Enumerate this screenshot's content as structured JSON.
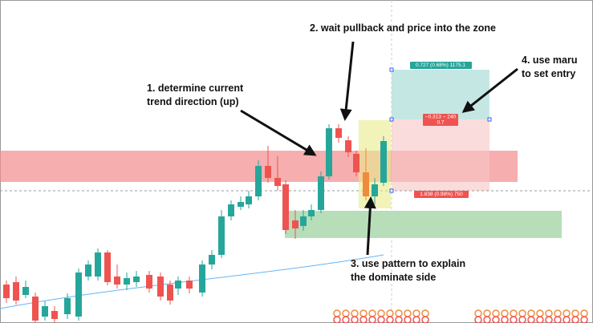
{
  "annotations": {
    "step1": [
      "1. determine current",
      "trend direction (up)"
    ],
    "step2": "2. wait pullback and price into the zone",
    "step3": [
      "3. use pattern to explain",
      "the dominate side"
    ],
    "step4": [
      "4. use maru",
      "to set entry"
    ]
  },
  "position_tool": {
    "target_label": "0.727 (0.68%) 1175.1",
    "entry_label": [
      "−0.313 ~ 240",
      "0.7"
    ],
    "stop_label": "1.838 (0.98%) 750"
  }
}
